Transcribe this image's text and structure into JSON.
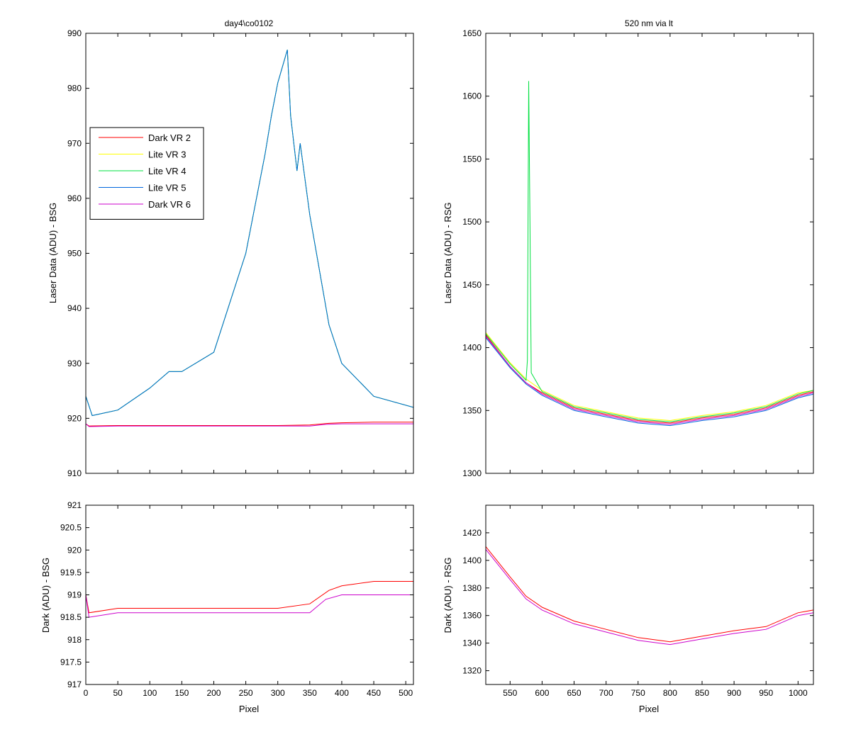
{
  "chart_data": [
    {
      "type": "line",
      "title": "day4\\co0102",
      "xlabel": "",
      "ylabel": "Laser Data (ADU) - BSG",
      "xlim": [
        0,
        512
      ],
      "ylim": [
        910,
        990
      ],
      "xticks": [
        0,
        50,
        100,
        150,
        200,
        250,
        300,
        350,
        400,
        450,
        500
      ],
      "yticks": [
        910,
        920,
        930,
        940,
        950,
        960,
        970,
        980,
        990
      ],
      "show_x_tick_labels": false,
      "grid": false,
      "legend_position": "upper-left",
      "series": [
        {
          "name": "Dark VR 2",
          "color": "#ff0000",
          "x": [
            0,
            5,
            50,
            100,
            150,
            200,
            250,
            300,
            350,
            380,
            400,
            450,
            512
          ],
          "y": [
            919,
            918.6,
            918.7,
            918.7,
            918.7,
            918.7,
            918.7,
            918.7,
            918.8,
            919.1,
            919.2,
            919.3,
            919.3
          ]
        },
        {
          "name": "Lite VR 3",
          "color": "#ffff00",
          "x": [
            0,
            10,
            50,
            100,
            130,
            150,
            200,
            250,
            280,
            290,
            300,
            315,
            320,
            330,
            335,
            350,
            380,
            400,
            450,
            512
          ],
          "y": [
            924,
            920.5,
            921.5,
            925.5,
            928.5,
            928.5,
            932,
            950,
            968,
            975,
            981,
            987,
            975,
            965,
            970,
            957,
            937,
            930,
            924,
            922
          ]
        },
        {
          "name": "Lite VR 4",
          "color": "#00e040",
          "x": [
            0,
            10,
            50,
            100,
            130,
            150,
            200,
            250,
            280,
            290,
            300,
            315,
            320,
            330,
            335,
            350,
            380,
            400,
            450,
            512
          ],
          "y": [
            924,
            920.5,
            921.5,
            925.5,
            928.5,
            928.5,
            932,
            950,
            968,
            975,
            981,
            987,
            975,
            965,
            970,
            957,
            937,
            930,
            924,
            922
          ]
        },
        {
          "name": "Lite VR 5",
          "color": "#0066dd",
          "x": [
            0,
            10,
            50,
            100,
            130,
            150,
            200,
            250,
            280,
            290,
            300,
            315,
            320,
            330,
            335,
            350,
            380,
            400,
            450,
            512
          ],
          "y": [
            924,
            920.5,
            921.5,
            925.5,
            928.5,
            928.5,
            932,
            950,
            968,
            975,
            981,
            987,
            975,
            965,
            970,
            957,
            937,
            930,
            924,
            922
          ]
        },
        {
          "name": "Dark VR 6",
          "color": "#cc00cc",
          "x": [
            0,
            5,
            50,
            100,
            150,
            200,
            250,
            300,
            350,
            375,
            400,
            450,
            512
          ],
          "y": [
            919,
            918.5,
            918.6,
            918.6,
            918.6,
            918.6,
            918.6,
            918.6,
            918.6,
            918.9,
            919,
            919,
            919
          ]
        }
      ]
    },
    {
      "type": "line",
      "title": "520 nm via lt",
      "xlabel": "",
      "ylabel": "Laser Data (ADU) - RSG",
      "xlim": [
        512,
        1024
      ],
      "ylim": [
        1300,
        1650
      ],
      "xticks": [
        550,
        600,
        650,
        700,
        750,
        800,
        850,
        900,
        950,
        1000
      ],
      "yticks": [
        1300,
        1350,
        1400,
        1450,
        1500,
        1550,
        1600,
        1650
      ],
      "show_x_tick_labels": false,
      "grid": false,
      "series": [
        {
          "name": "",
          "color": "#ff0000",
          "x": [
            512,
            550,
            575,
            600,
            650,
            700,
            750,
            800,
            850,
            900,
            950,
            1000,
            1024
          ],
          "y": [
            1410,
            1385,
            1372,
            1364,
            1352,
            1347,
            1342,
            1340,
            1344,
            1347,
            1352,
            1362,
            1365
          ]
        },
        {
          "name": "",
          "color": "#ffff00",
          "x": [
            512,
            550,
            575,
            600,
            650,
            700,
            750,
            800,
            850,
            900,
            950,
            1000,
            1024
          ],
          "y": [
            1412,
            1388,
            1375,
            1366,
            1354,
            1349,
            1344,
            1342,
            1346,
            1349,
            1354,
            1364,
            1366
          ]
        },
        {
          "name": "",
          "color": "#00e040",
          "x": [
            512,
            550,
            575,
            577,
            579,
            581,
            583,
            600,
            650,
            700,
            750,
            800,
            850,
            900,
            950,
            1000,
            1024
          ],
          "y": [
            1411,
            1387,
            1374,
            1390,
            1612,
            1500,
            1380,
            1365,
            1353,
            1348,
            1343,
            1341,
            1345,
            1348,
            1353,
            1363,
            1366
          ]
        },
        {
          "name": "",
          "color": "#0066dd",
          "x": [
            512,
            550,
            575,
            600,
            650,
            700,
            750,
            800,
            850,
            900,
            950,
            1000,
            1024
          ],
          "y": [
            1408,
            1384,
            1371,
            1362,
            1350,
            1345,
            1340,
            1338,
            1342,
            1345,
            1350,
            1360,
            1363
          ]
        },
        {
          "name": "",
          "color": "#cc00cc",
          "x": [
            512,
            550,
            575,
            600,
            650,
            700,
            750,
            800,
            850,
            900,
            950,
            1000,
            1024
          ],
          "y": [
            1409,
            1385,
            1372,
            1363,
            1351,
            1346,
            1341,
            1339,
            1343,
            1346,
            1351,
            1361,
            1364
          ]
        }
      ]
    },
    {
      "type": "line",
      "title": "",
      "xlabel": "Pixel",
      "ylabel": "Dark (ADU) - BSG",
      "xlim": [
        0,
        512
      ],
      "ylim": [
        917,
        921
      ],
      "xticks": [
        0,
        50,
        100,
        150,
        200,
        250,
        300,
        350,
        400,
        450,
        500
      ],
      "yticks": [
        917,
        917.5,
        918,
        918.5,
        919,
        919.5,
        920,
        920.5,
        921
      ],
      "show_x_tick_labels": true,
      "grid": false,
      "series": [
        {
          "name": "",
          "color": "#ff0000",
          "x": [
            0,
            5,
            50,
            100,
            150,
            200,
            250,
            300,
            350,
            380,
            400,
            450,
            512
          ],
          "y": [
            919,
            918.6,
            918.7,
            918.7,
            918.7,
            918.7,
            918.7,
            918.7,
            918.8,
            919.1,
            919.2,
            919.3,
            919.3
          ]
        },
        {
          "name": "",
          "color": "#cc00cc",
          "x": [
            0,
            5,
            50,
            100,
            150,
            200,
            250,
            300,
            350,
            375,
            400,
            450,
            512
          ],
          "y": [
            919,
            918.5,
            918.6,
            918.6,
            918.6,
            918.6,
            918.6,
            918.6,
            918.6,
            918.9,
            919,
            919,
            919
          ]
        }
      ]
    },
    {
      "type": "line",
      "title": "",
      "xlabel": "Pixel",
      "ylabel": "Dark (ADU) - RSG",
      "xlim": [
        512,
        1024
      ],
      "ylim": [
        1310,
        1440
      ],
      "xticks": [
        550,
        600,
        650,
        700,
        750,
        800,
        850,
        900,
        950,
        1000
      ],
      "yticks": [
        1320,
        1340,
        1360,
        1380,
        1400,
        1420
      ],
      "show_x_tick_labels": true,
      "grid": false,
      "series": [
        {
          "name": "",
          "color": "#ff0000",
          "x": [
            512,
            550,
            575,
            600,
            650,
            700,
            750,
            800,
            850,
            900,
            950,
            1000,
            1024
          ],
          "y": [
            1410,
            1388,
            1374,
            1366,
            1356,
            1350,
            1344,
            1341,
            1345,
            1349,
            1352,
            1362,
            1364
          ]
        },
        {
          "name": "",
          "color": "#cc00cc",
          "x": [
            512,
            550,
            575,
            600,
            650,
            700,
            750,
            800,
            850,
            900,
            950,
            1000,
            1024
          ],
          "y": [
            1408,
            1386,
            1372,
            1364,
            1354,
            1348,
            1342,
            1339,
            1343,
            1347,
            1350,
            1360,
            1362
          ]
        }
      ]
    }
  ]
}
